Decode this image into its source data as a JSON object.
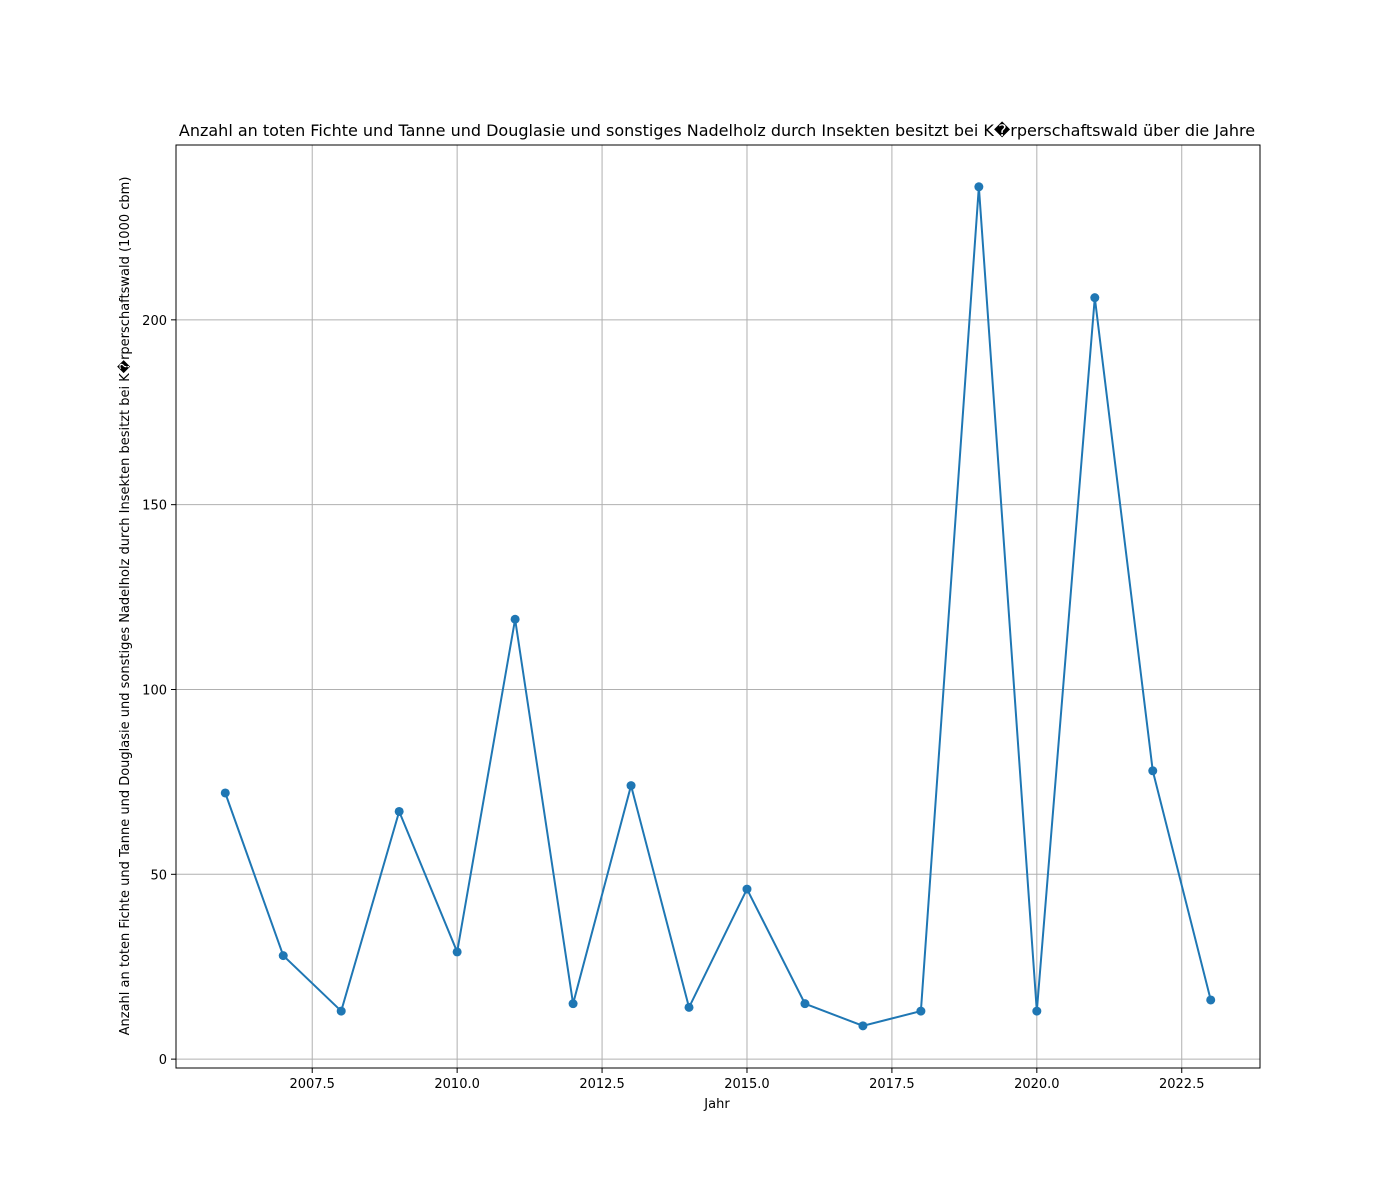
{
  "chart_data": {
    "type": "line",
    "title": "Anzahl an toten Fichte und Tanne und Douglasie und sonstiges Nadelholz durch Insekten besitzt bei K�rperschaftswald über die Jahre",
    "xlabel": "Jahr",
    "ylabel": "Anzahl an toten Fichte und Tanne und Douglasie und sonstiges Nadelholz durch Insekten besitzt bei K�rperschaftswald (1000 cbm)",
    "x": [
      2006,
      2007,
      2008,
      2009,
      2010,
      2011,
      2012,
      2013,
      2014,
      2015,
      2016,
      2017,
      2018,
      2019,
      2020,
      2021,
      2022,
      2023
    ],
    "series": [
      {
        "values": [
          72,
          28,
          13,
          67,
          29,
          119,
          15,
          74,
          14,
          46,
          15,
          9,
          13,
          236,
          13,
          206,
          78,
          16
        ]
      }
    ],
    "xlim": [
      2005.15,
      2023.85
    ],
    "ylim": [
      -2.4,
      247.3
    ],
    "x_ticks": [
      "2007.5",
      "2010.0",
      "2012.5",
      "2015.0",
      "2017.5",
      "2020.0",
      "2022.5"
    ],
    "y_ticks": [
      "0",
      "50",
      "100",
      "150",
      "200"
    ],
    "grid": true,
    "line_color": "#1f77b4"
  }
}
